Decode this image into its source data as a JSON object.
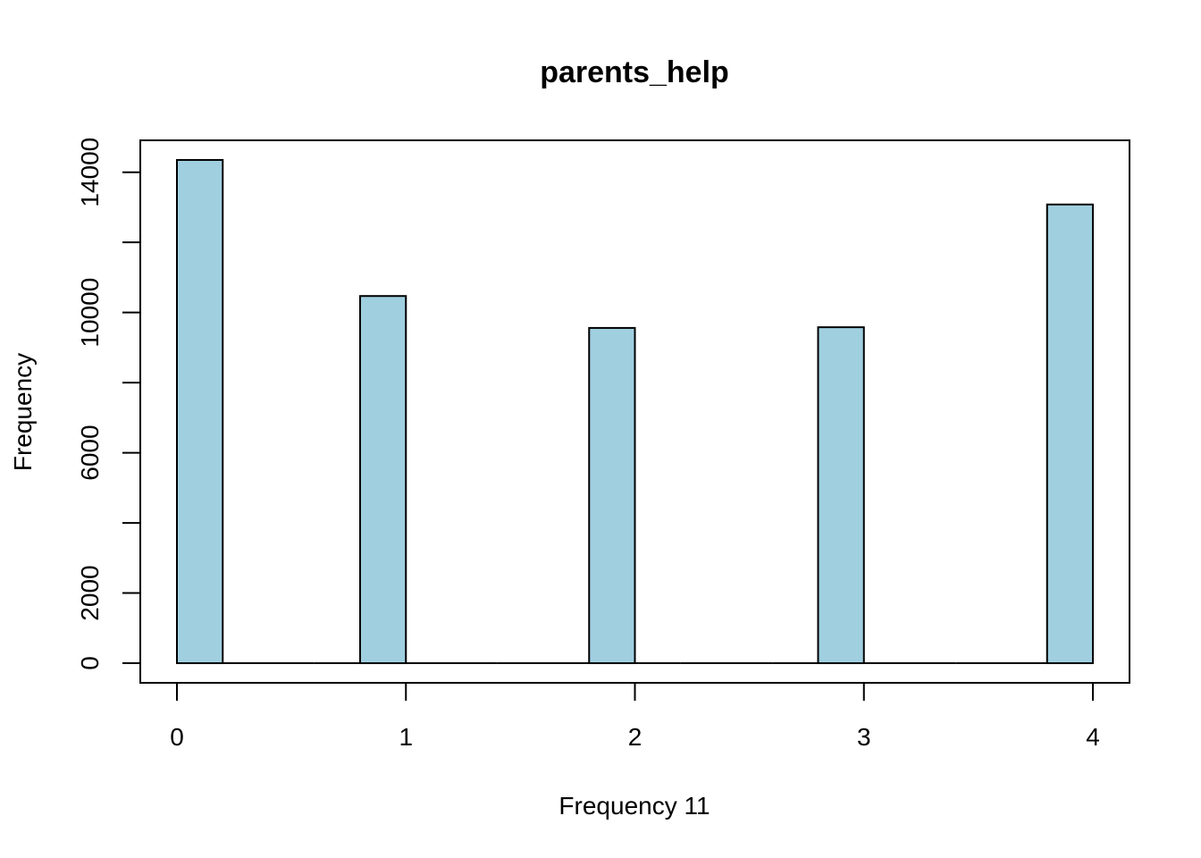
{
  "chart_data": {
    "type": "bar",
    "title": "parents_help",
    "xlabel": "Frequency 11",
    "ylabel": "Frequency",
    "bins": [
      {
        "start": 0.0,
        "end": 0.2,
        "value": 14350
      },
      {
        "start": 0.8,
        "end": 1.0,
        "value": 10470
      },
      {
        "start": 1.8,
        "end": 2.0,
        "value": 9560
      },
      {
        "start": 2.8,
        "end": 3.0,
        "value": 9580
      },
      {
        "start": 3.8,
        "end": 4.0,
        "value": 13080
      }
    ],
    "empty_bin_width": 0.2,
    "x_ticks": [
      0,
      1,
      2,
      3,
      4
    ],
    "x_tick_labels": [
      "0",
      "1",
      "2",
      "3",
      "4"
    ],
    "y_ticks": [
      0,
      2000,
      4000,
      6000,
      8000,
      10000,
      12000,
      14000
    ],
    "y_tick_labels": [
      "0",
      "2000",
      "6000",
      "10000",
      "14000"
    ],
    "y_labeled_ticks": [
      0,
      2000,
      6000,
      10000,
      14000
    ],
    "xlim": [
      -0.16,
      4.16
    ],
    "ylim": [
      -560,
      14910
    ],
    "grid": false,
    "legend": "none",
    "bar_color": "#a0cfe0",
    "bar_edge_color": "#000000"
  }
}
